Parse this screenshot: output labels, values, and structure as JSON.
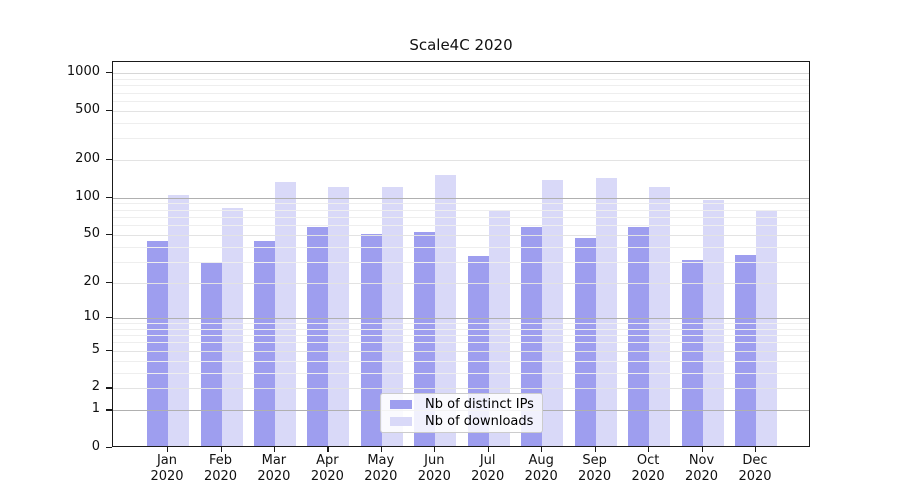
{
  "window": {
    "title": "Scale4C 2020"
  },
  "chart_data": {
    "type": "bar",
    "title": "Scale4C 2020",
    "xlabel": "",
    "ylabel": "",
    "y_scale": "log1p",
    "ylim": [
      0,
      1230
    ],
    "grid": true,
    "legend_position": "lower center",
    "categories": [
      "Jan 2020",
      "Feb 2020",
      "Mar 2020",
      "Apr 2020",
      "May 2020",
      "Jun 2020",
      "Jul 2020",
      "Aug 2020",
      "Sep 2020",
      "Oct 2020",
      "Nov 2020",
      "Dec 2020"
    ],
    "y_ticks": [
      1000,
      500,
      200,
      100,
      50,
      20,
      10,
      5,
      2,
      1,
      0
    ],
    "series": [
      {
        "name": "Nb of distinct IPs",
        "color": "#9e9eef",
        "values": [
          43,
          28,
          43,
          56,
          49,
          51,
          32,
          56,
          45,
          56,
          30,
          33
        ]
      },
      {
        "name": "Nb of downloads",
        "color": "#d9d9f8",
        "values": [
          101,
          80,
          130,
          118,
          118,
          148,
          77,
          135,
          138,
          117,
          92,
          75
        ]
      }
    ]
  },
  "legend": {
    "items": [
      {
        "label": "Nb of distinct IPs",
        "color": "#9e9eef"
      },
      {
        "label": "Nb of downloads",
        "color": "#d9d9f8"
      }
    ]
  },
  "colors": {
    "distinct_ips_bar": "#9e9eef",
    "downloads_bar": "#d9d9f8",
    "decade_gridline": "#b0b0b0",
    "minor_gridline": "#eeeeee",
    "axis_spine": "#1a1a1a"
  }
}
